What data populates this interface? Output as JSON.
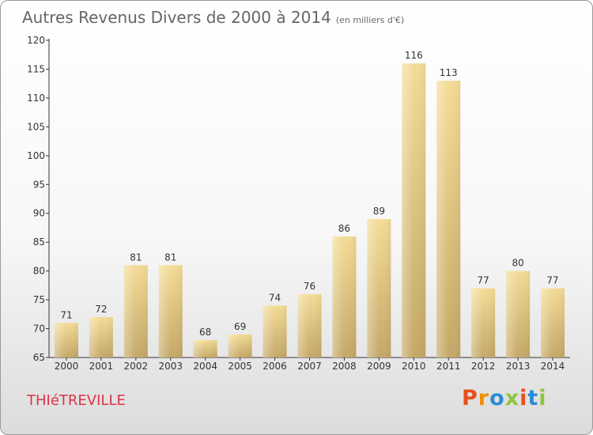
{
  "header": {
    "title": "Autres Revenus Divers de 2000 à 2014",
    "unit": "(en milliers d'€)"
  },
  "footer": {
    "town": "THIéTREVILLE",
    "brand": "Proxiti"
  },
  "colors": {
    "bar_light": "#f4dc96",
    "bar_dark": "#c4a868",
    "axis": "#333333",
    "label": "#333333",
    "town": "#d9344a",
    "brand_letters": [
      "#e84f1c",
      "#f29100",
      "#2a8bd6",
      "#8dc63f",
      "#e84f1c",
      "#2a8bd6",
      "#8dc63f"
    ]
  },
  "chart_data": {
    "type": "bar",
    "title": "Autres Revenus Divers de 2000 à 2014",
    "xlabel": "",
    "ylabel": "",
    "categories": [
      "2000",
      "2001",
      "2002",
      "2003",
      "2004",
      "2005",
      "2006",
      "2007",
      "2008",
      "2009",
      "2010",
      "2011",
      "2012",
      "2013",
      "2014"
    ],
    "values": [
      71,
      72,
      81,
      81,
      68,
      69,
      74,
      76,
      86,
      89,
      116,
      113,
      77,
      80,
      77
    ],
    "ylim": [
      65,
      120
    ],
    "yticks": [
      65,
      70,
      75,
      80,
      85,
      90,
      95,
      100,
      105,
      110,
      115,
      120
    ],
    "grid": false,
    "data_labels": true
  }
}
